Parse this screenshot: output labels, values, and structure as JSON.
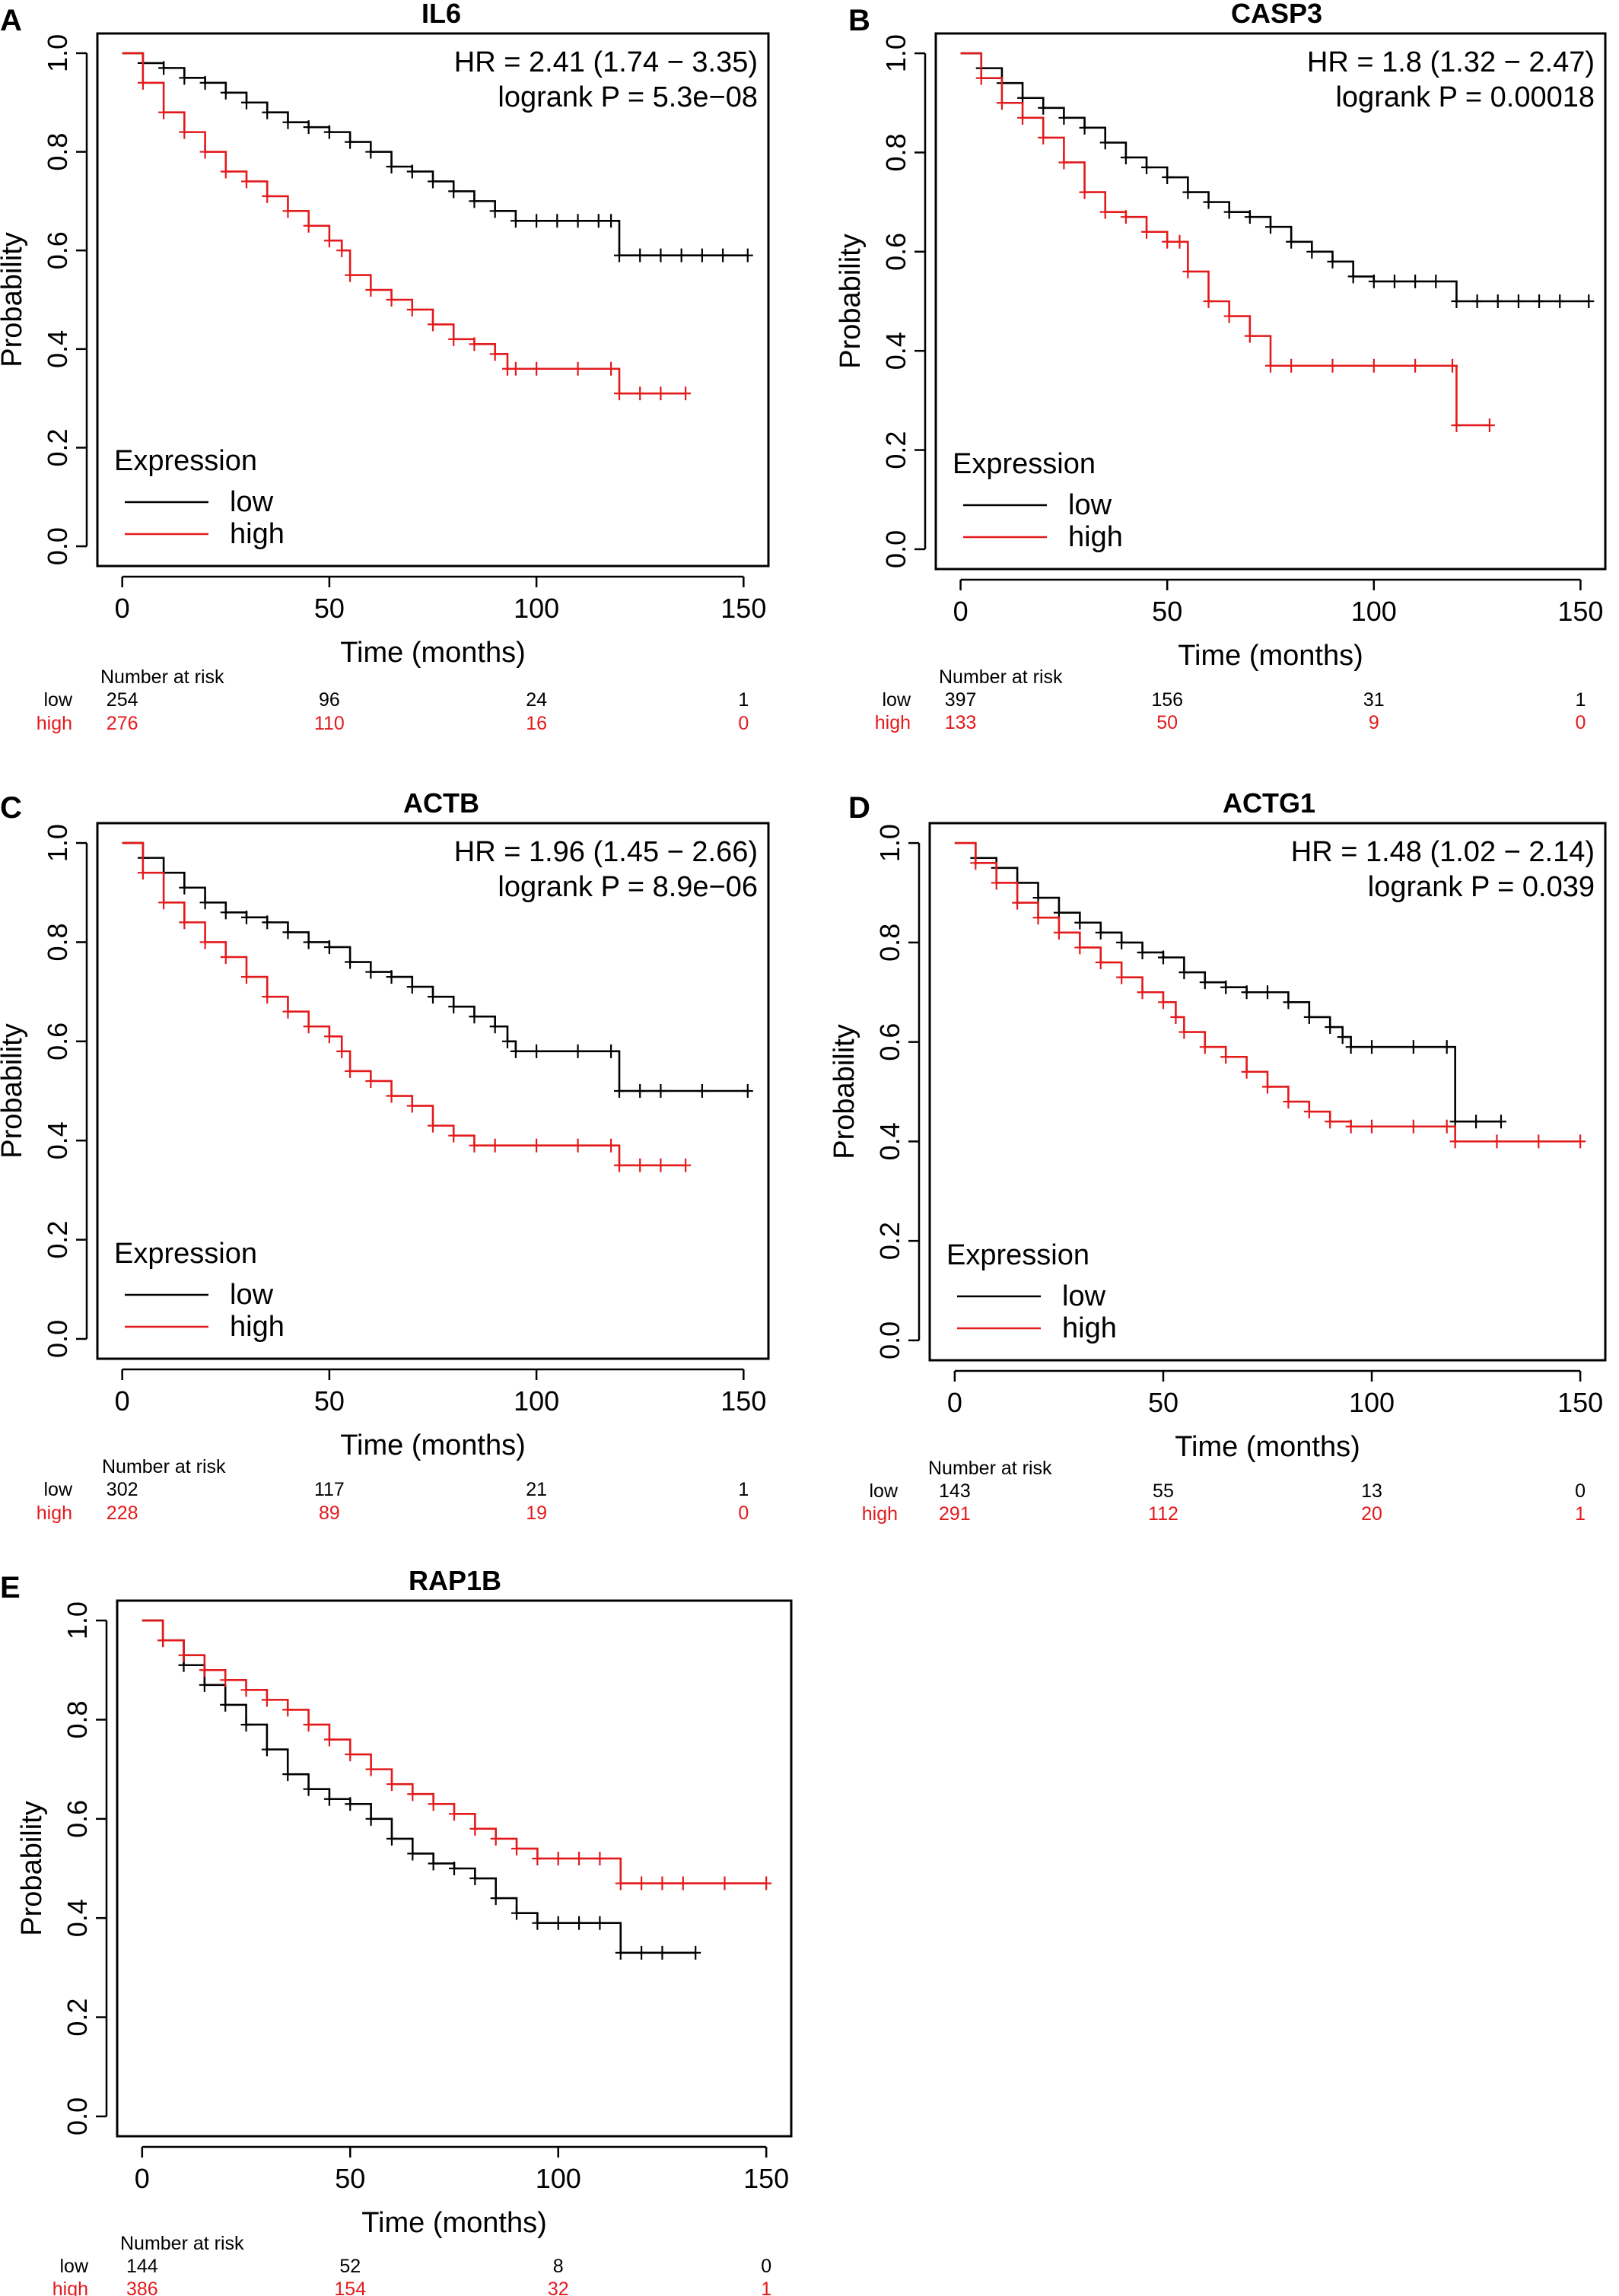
{
  "colors": {
    "low": "#000000",
    "high": "#e31a1c"
  },
  "chart_data": [
    {
      "type": "line",
      "panel_letter": "A",
      "title": "IL6",
      "xlabel": "Time (months)",
      "ylabel": "Probability",
      "xlim": [
        0,
        150
      ],
      "ylim": [
        0,
        1
      ],
      "x_ticks": [
        "0",
        "50",
        "100",
        "150"
      ],
      "y_ticks": [
        "0.0",
        "0.2",
        "0.4",
        "0.6",
        "0.8",
        "1.0"
      ],
      "stats": [
        "HR = 2.41 (1.74 − 3.35)",
        "logrank P = 5.3e−08"
      ],
      "legend_title": "Expression",
      "legend_position": "bottom-left",
      "series": [
        {
          "name": "low",
          "color": "#000000",
          "x": [
            0,
            5,
            10,
            15,
            20,
            25,
            30,
            35,
            40,
            45,
            50,
            55,
            60,
            65,
            70,
            75,
            80,
            85,
            90,
            95,
            100,
            105,
            110,
            115,
            118,
            120,
            125,
            130,
            135,
            140,
            145,
            151
          ],
          "y": [
            1.0,
            0.98,
            0.97,
            0.95,
            0.94,
            0.92,
            0.9,
            0.88,
            0.86,
            0.85,
            0.84,
            0.82,
            0.8,
            0.77,
            0.76,
            0.74,
            0.72,
            0.7,
            0.68,
            0.66,
            0.66,
            0.66,
            0.66,
            0.66,
            0.66,
            0.59,
            0.59,
            0.59,
            0.59,
            0.59,
            0.59,
            0.59
          ]
        },
        {
          "name": "high",
          "color": "#e31a1c",
          "x": [
            0,
            5,
            10,
            15,
            20,
            25,
            30,
            35,
            40,
            45,
            50,
            53,
            55,
            60,
            65,
            70,
            75,
            80,
            85,
            90,
            93,
            95,
            100,
            110,
            118,
            120,
            125,
            130,
            136
          ],
          "y": [
            1.0,
            0.94,
            0.88,
            0.84,
            0.8,
            0.76,
            0.74,
            0.71,
            0.68,
            0.65,
            0.62,
            0.6,
            0.55,
            0.52,
            0.5,
            0.48,
            0.45,
            0.42,
            0.41,
            0.39,
            0.36,
            0.36,
            0.36,
            0.36,
            0.36,
            0.31,
            0.31,
            0.31,
            0.31
          ]
        }
      ],
      "risk_table": {
        "header": "Number at risk",
        "rows": [
          {
            "name": "low",
            "values": [
              "254",
              "96",
              "24",
              "1"
            ]
          },
          {
            "name": "high",
            "values": [
              "276",
              "110",
              "16",
              "0"
            ]
          }
        ]
      }
    },
    {
      "type": "line",
      "panel_letter": "B",
      "title": "CASP3",
      "xlabel": "Time (months)",
      "ylabel": "Probability",
      "xlim": [
        0,
        150
      ],
      "ylim": [
        0,
        1
      ],
      "x_ticks": [
        "0",
        "50",
        "100",
        "150"
      ],
      "y_ticks": [
        "0.0",
        "0.2",
        "0.4",
        "0.6",
        "0.8",
        "1.0"
      ],
      "stats": [
        "HR = 1.8 (1.32 − 2.47)",
        "logrank P = 0.00018"
      ],
      "legend_title": "Expression",
      "legend_position": "bottom-left",
      "series": [
        {
          "name": "low",
          "color": "#000000",
          "x": [
            0,
            5,
            10,
            15,
            20,
            25,
            30,
            35,
            40,
            45,
            50,
            55,
            60,
            65,
            70,
            75,
            80,
            85,
            90,
            95,
            100,
            105,
            110,
            115,
            120,
            125,
            130,
            135,
            140,
            145,
            152
          ],
          "y": [
            1.0,
            0.97,
            0.94,
            0.91,
            0.89,
            0.87,
            0.85,
            0.82,
            0.79,
            0.77,
            0.75,
            0.72,
            0.7,
            0.68,
            0.67,
            0.65,
            0.62,
            0.6,
            0.58,
            0.55,
            0.54,
            0.54,
            0.54,
            0.54,
            0.5,
            0.5,
            0.5,
            0.5,
            0.5,
            0.5,
            0.5
          ]
        },
        {
          "name": "high",
          "color": "#e31a1c",
          "x": [
            0,
            5,
            10,
            15,
            20,
            25,
            30,
            35,
            40,
            45,
            50,
            53,
            55,
            60,
            65,
            70,
            75,
            80,
            90,
            100,
            110,
            119,
            120,
            128
          ],
          "y": [
            1.0,
            0.95,
            0.9,
            0.87,
            0.83,
            0.78,
            0.72,
            0.68,
            0.67,
            0.64,
            0.62,
            0.62,
            0.56,
            0.5,
            0.47,
            0.43,
            0.37,
            0.37,
            0.37,
            0.37,
            0.37,
            0.37,
            0.25,
            0.25
          ]
        }
      ],
      "risk_table": {
        "header": "Number at risk",
        "rows": [
          {
            "name": "low",
            "values": [
              "397",
              "156",
              "31",
              "1"
            ]
          },
          {
            "name": "high",
            "values": [
              "133",
              "50",
              "9",
              "0"
            ]
          }
        ]
      }
    },
    {
      "type": "line",
      "panel_letter": "C",
      "title": "ACTB",
      "xlabel": "Time (months)",
      "ylabel": "Probability",
      "xlim": [
        0,
        150
      ],
      "ylim": [
        0,
        1
      ],
      "x_ticks": [
        "0",
        "50",
        "100",
        "150"
      ],
      "y_ticks": [
        "0.0",
        "0.2",
        "0.4",
        "0.6",
        "0.8",
        "1.0"
      ],
      "stats": [
        "HR = 1.96 (1.45 − 2.66)",
        "logrank P = 8.9e−06"
      ],
      "legend_title": "Expression",
      "legend_position": "bottom-left",
      "series": [
        {
          "name": "low",
          "color": "#000000",
          "x": [
            0,
            5,
            10,
            15,
            20,
            25,
            30,
            35,
            40,
            45,
            50,
            55,
            60,
            65,
            70,
            75,
            80,
            85,
            90,
            93,
            95,
            100,
            110,
            118,
            120,
            125,
            130,
            140,
            151
          ],
          "y": [
            1.0,
            0.97,
            0.94,
            0.91,
            0.88,
            0.86,
            0.85,
            0.84,
            0.82,
            0.8,
            0.79,
            0.76,
            0.74,
            0.73,
            0.71,
            0.69,
            0.67,
            0.65,
            0.63,
            0.6,
            0.58,
            0.58,
            0.58,
            0.58,
            0.5,
            0.5,
            0.5,
            0.5,
            0.5
          ]
        },
        {
          "name": "high",
          "color": "#e31a1c",
          "x": [
            0,
            5,
            10,
            15,
            20,
            25,
            30,
            35,
            40,
            45,
            50,
            53,
            55,
            60,
            65,
            70,
            75,
            80,
            85,
            90,
            100,
            110,
            118,
            120,
            125,
            130,
            136
          ],
          "y": [
            1.0,
            0.94,
            0.88,
            0.84,
            0.8,
            0.77,
            0.73,
            0.69,
            0.66,
            0.63,
            0.61,
            0.58,
            0.54,
            0.52,
            0.49,
            0.47,
            0.43,
            0.41,
            0.39,
            0.39,
            0.39,
            0.39,
            0.39,
            0.35,
            0.35,
            0.35,
            0.35
          ]
        }
      ],
      "risk_table": {
        "header": "Number at risk",
        "rows": [
          {
            "name": "low",
            "values": [
              "302",
              "117",
              "21",
              "1"
            ]
          },
          {
            "name": "high",
            "values": [
              "228",
              "89",
              "19",
              "0"
            ]
          }
        ]
      }
    },
    {
      "type": "line",
      "panel_letter": "D",
      "title": "ACTG1",
      "xlabel": "Time (months)",
      "ylabel": "Probability",
      "xlim": [
        0,
        150
      ],
      "ylim": [
        0,
        1
      ],
      "x_ticks": [
        "0",
        "50",
        "100",
        "150"
      ],
      "y_ticks": [
        "0.0",
        "0.2",
        "0.4",
        "0.6",
        "0.8",
        "1.0"
      ],
      "stats": [
        "HR = 1.48 (1.02 − 2.14)",
        "logrank P = 0.039"
      ],
      "legend_title": "Expression",
      "legend_position": "bottom-left",
      "series": [
        {
          "name": "low",
          "color": "#000000",
          "x": [
            0,
            5,
            10,
            15,
            20,
            25,
            30,
            35,
            40,
            45,
            50,
            55,
            60,
            65,
            70,
            75,
            80,
            85,
            90,
            93,
            95,
            100,
            110,
            118,
            120,
            125,
            131
          ],
          "y": [
            1.0,
            0.97,
            0.95,
            0.92,
            0.89,
            0.86,
            0.84,
            0.82,
            0.8,
            0.78,
            0.77,
            0.74,
            0.72,
            0.71,
            0.7,
            0.7,
            0.68,
            0.65,
            0.63,
            0.61,
            0.59,
            0.59,
            0.59,
            0.59,
            0.44,
            0.44,
            0.44
          ]
        },
        {
          "name": "high",
          "color": "#e31a1c",
          "x": [
            0,
            5,
            10,
            15,
            20,
            25,
            30,
            35,
            40,
            45,
            50,
            53,
            55,
            60,
            65,
            70,
            75,
            80,
            85,
            90,
            95,
            100,
            110,
            118,
            120,
            130,
            140,
            150
          ],
          "y": [
            1.0,
            0.96,
            0.92,
            0.88,
            0.85,
            0.82,
            0.79,
            0.76,
            0.73,
            0.7,
            0.68,
            0.65,
            0.62,
            0.59,
            0.57,
            0.54,
            0.51,
            0.48,
            0.46,
            0.44,
            0.43,
            0.43,
            0.43,
            0.43,
            0.4,
            0.4,
            0.4,
            0.4
          ]
        }
      ],
      "risk_table": {
        "header": "Number at risk",
        "rows": [
          {
            "name": "low",
            "values": [
              "143",
              "55",
              "13",
              "0"
            ]
          },
          {
            "name": "high",
            "values": [
              "291",
              "112",
              "20",
              "1"
            ]
          }
        ]
      }
    },
    {
      "type": "line",
      "panel_letter": "E",
      "title": "RAP1B",
      "xlabel": "Time (months)",
      "ylabel": "Probability",
      "xlim": [
        0,
        150
      ],
      "ylim": [
        0,
        1
      ],
      "x_ticks": [
        "0",
        "50",
        "100",
        "150"
      ],
      "y_ticks": [
        "0.0",
        "0.2",
        "0.4",
        "0.6",
        "0.8",
        "1.0"
      ],
      "stats": [],
      "legend_title": "",
      "legend_position": "none",
      "series": [
        {
          "name": "low",
          "color": "#000000",
          "x": [
            0,
            5,
            10,
            15,
            20,
            25,
            30,
            35,
            40,
            45,
            50,
            55,
            60,
            65,
            70,
            75,
            80,
            85,
            90,
            95,
            100,
            105,
            110,
            115,
            120,
            125,
            133
          ],
          "y": [
            1.0,
            0.96,
            0.91,
            0.87,
            0.83,
            0.79,
            0.74,
            0.69,
            0.66,
            0.64,
            0.63,
            0.6,
            0.56,
            0.53,
            0.51,
            0.5,
            0.48,
            0.44,
            0.41,
            0.39,
            0.39,
            0.39,
            0.39,
            0.33,
            0.33,
            0.33,
            0.33
          ]
        },
        {
          "name": "high",
          "color": "#e31a1c",
          "x": [
            0,
            5,
            10,
            15,
            20,
            25,
            30,
            35,
            40,
            45,
            50,
            55,
            60,
            65,
            70,
            75,
            80,
            85,
            90,
            95,
            100,
            105,
            110,
            115,
            120,
            125,
            130,
            140,
            150
          ],
          "y": [
            1.0,
            0.96,
            0.93,
            0.9,
            0.88,
            0.86,
            0.84,
            0.82,
            0.79,
            0.76,
            0.73,
            0.7,
            0.67,
            0.65,
            0.63,
            0.61,
            0.58,
            0.56,
            0.54,
            0.52,
            0.52,
            0.52,
            0.52,
            0.47,
            0.47,
            0.47,
            0.47,
            0.47,
            0.47
          ]
        }
      ],
      "risk_table": {
        "header": "Number at risk",
        "rows": [
          {
            "name": "low",
            "values": [
              "144",
              "52",
              "8",
              "0"
            ]
          },
          {
            "name": "high",
            "values": [
              "386",
              "154",
              "32",
              "1"
            ]
          }
        ]
      }
    }
  ]
}
